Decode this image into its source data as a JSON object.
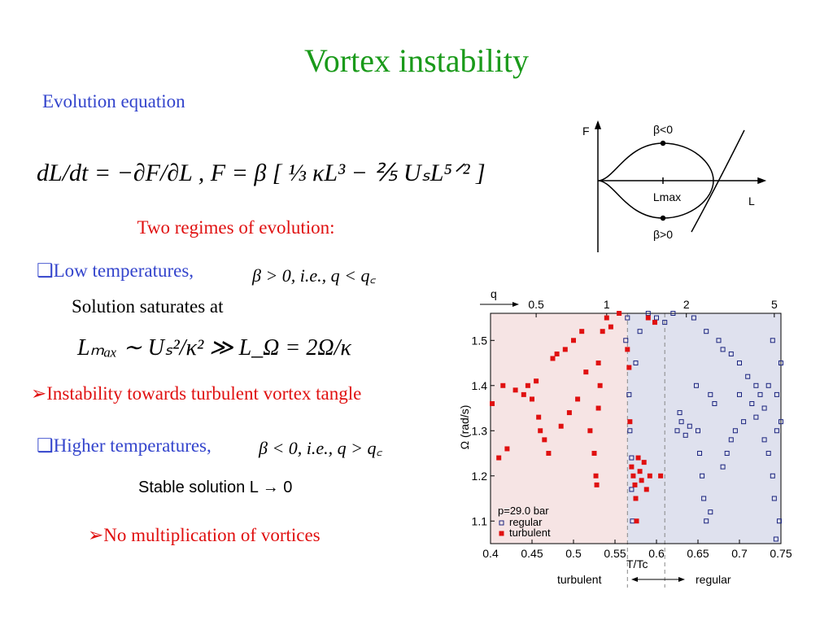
{
  "title": "Vortex instability",
  "subtitle": "Evolution equation",
  "equation": "dL/dt = −∂F/∂L ,    F = β [ ⅓ κL³ − ⅖ UₛL⁵ᐟ² ]",
  "regimes": "Two regimes of evolution:",
  "low": {
    "heading": "❑Low temperatures,",
    "condition": "β > 0, i.e., q < q꜀",
    "text": "Solution saturates at",
    "formula": "Lₘₐₓ ∼ Uₛ²/κ² ≫ L_Ω = 2Ω/κ",
    "result": "➢Instability towards turbulent vortex tangle"
  },
  "high": {
    "heading": "❑Higher temperatures,",
    "condition": "β < 0, i.e., q > q꜀",
    "text": "Stable solution L → 0",
    "result": "➢No multiplication of vortices"
  },
  "diagram": {
    "labels": [
      "F",
      "β<0",
      "Lmax",
      "L",
      "β>0"
    ]
  },
  "chart": {
    "type": "scatter",
    "x_label": "T/Tc",
    "y_label": "Ω (rad/s)",
    "x2_label": "q",
    "annotation": "p=29.0 bar",
    "regions": [
      "turbulent",
      "regular"
    ],
    "xlim": [
      0.4,
      0.75
    ],
    "xticks": [
      0.4,
      0.45,
      0.5,
      0.55,
      0.6,
      0.65,
      0.7,
      0.75
    ],
    "ylim": [
      1.05,
      1.56
    ],
    "yticks": [
      1.1,
      1.2,
      1.3,
      1.4,
      1.5
    ],
    "x2ticks": [
      0.5,
      1,
      2,
      5
    ],
    "x2_at": [
      0.455,
      0.54,
      0.636,
      0.742
    ],
    "boundaries": [
      0.565,
      0.61
    ],
    "series": [
      {
        "name": "regular",
        "color": "#1a237e",
        "x": [
          0.563,
          0.565,
          0.567,
          0.568,
          0.57,
          0.57,
          0.571,
          0.575,
          0.58,
          0.59,
          0.6,
          0.61,
          0.62,
          0.625,
          0.63,
          0.635,
          0.64,
          0.645,
          0.648,
          0.65,
          0.652,
          0.655,
          0.657,
          0.66,
          0.66,
          0.665,
          0.67,
          0.675,
          0.68,
          0.685,
          0.69,
          0.69,
          0.695,
          0.7,
          0.7,
          0.705,
          0.71,
          0.715,
          0.72,
          0.72,
          0.725,
          0.73,
          0.73,
          0.735,
          0.735,
          0.74,
          0.74,
          0.742,
          0.745,
          0.745,
          0.748,
          0.75,
          0.75,
          0.744,
          0.68,
          0.665,
          0.628
        ],
        "y": [
          1.5,
          1.55,
          1.38,
          1.3,
          1.24,
          1.17,
          1.1,
          1.45,
          1.52,
          1.56,
          1.55,
          1.54,
          1.56,
          1.3,
          1.32,
          1.29,
          1.31,
          1.55,
          1.4,
          1.3,
          1.25,
          1.2,
          1.15,
          1.1,
          1.52,
          1.38,
          1.36,
          1.5,
          1.22,
          1.25,
          1.28,
          1.47,
          1.3,
          1.38,
          1.45,
          1.32,
          1.42,
          1.36,
          1.4,
          1.33,
          1.38,
          1.35,
          1.28,
          1.25,
          1.4,
          1.2,
          1.5,
          1.15,
          1.38,
          1.3,
          1.1,
          1.32,
          1.45,
          1.06,
          1.48,
          1.12,
          1.34
        ]
      },
      {
        "name": "turbulent",
        "color": "#e01010",
        "x": [
          0.402,
          0.41,
          0.415,
          0.42,
          0.43,
          0.44,
          0.445,
          0.45,
          0.455,
          0.458,
          0.46,
          0.465,
          0.47,
          0.475,
          0.48,
          0.485,
          0.49,
          0.495,
          0.5,
          0.505,
          0.51,
          0.515,
          0.52,
          0.525,
          0.527,
          0.528,
          0.53,
          0.53,
          0.532,
          0.535,
          0.54,
          0.545,
          0.555,
          0.565,
          0.567,
          0.568,
          0.57,
          0.572,
          0.574,
          0.575,
          0.576,
          0.578,
          0.58,
          0.582,
          0.585,
          0.588,
          0.59,
          0.592,
          0.598,
          0.605
        ],
        "y": [
          1.36,
          1.24,
          1.4,
          1.26,
          1.39,
          1.38,
          1.4,
          1.37,
          1.41,
          1.33,
          1.3,
          1.28,
          1.25,
          1.46,
          1.47,
          1.31,
          1.48,
          1.34,
          1.5,
          1.37,
          1.52,
          1.43,
          1.3,
          1.25,
          1.2,
          1.18,
          1.45,
          1.35,
          1.4,
          1.52,
          1.55,
          1.53,
          1.56,
          1.48,
          1.44,
          1.32,
          1.22,
          1.2,
          1.18,
          1.15,
          1.1,
          1.24,
          1.21,
          1.19,
          1.23,
          1.17,
          1.55,
          1.2,
          1.54,
          1.2
        ]
      }
    ]
  }
}
